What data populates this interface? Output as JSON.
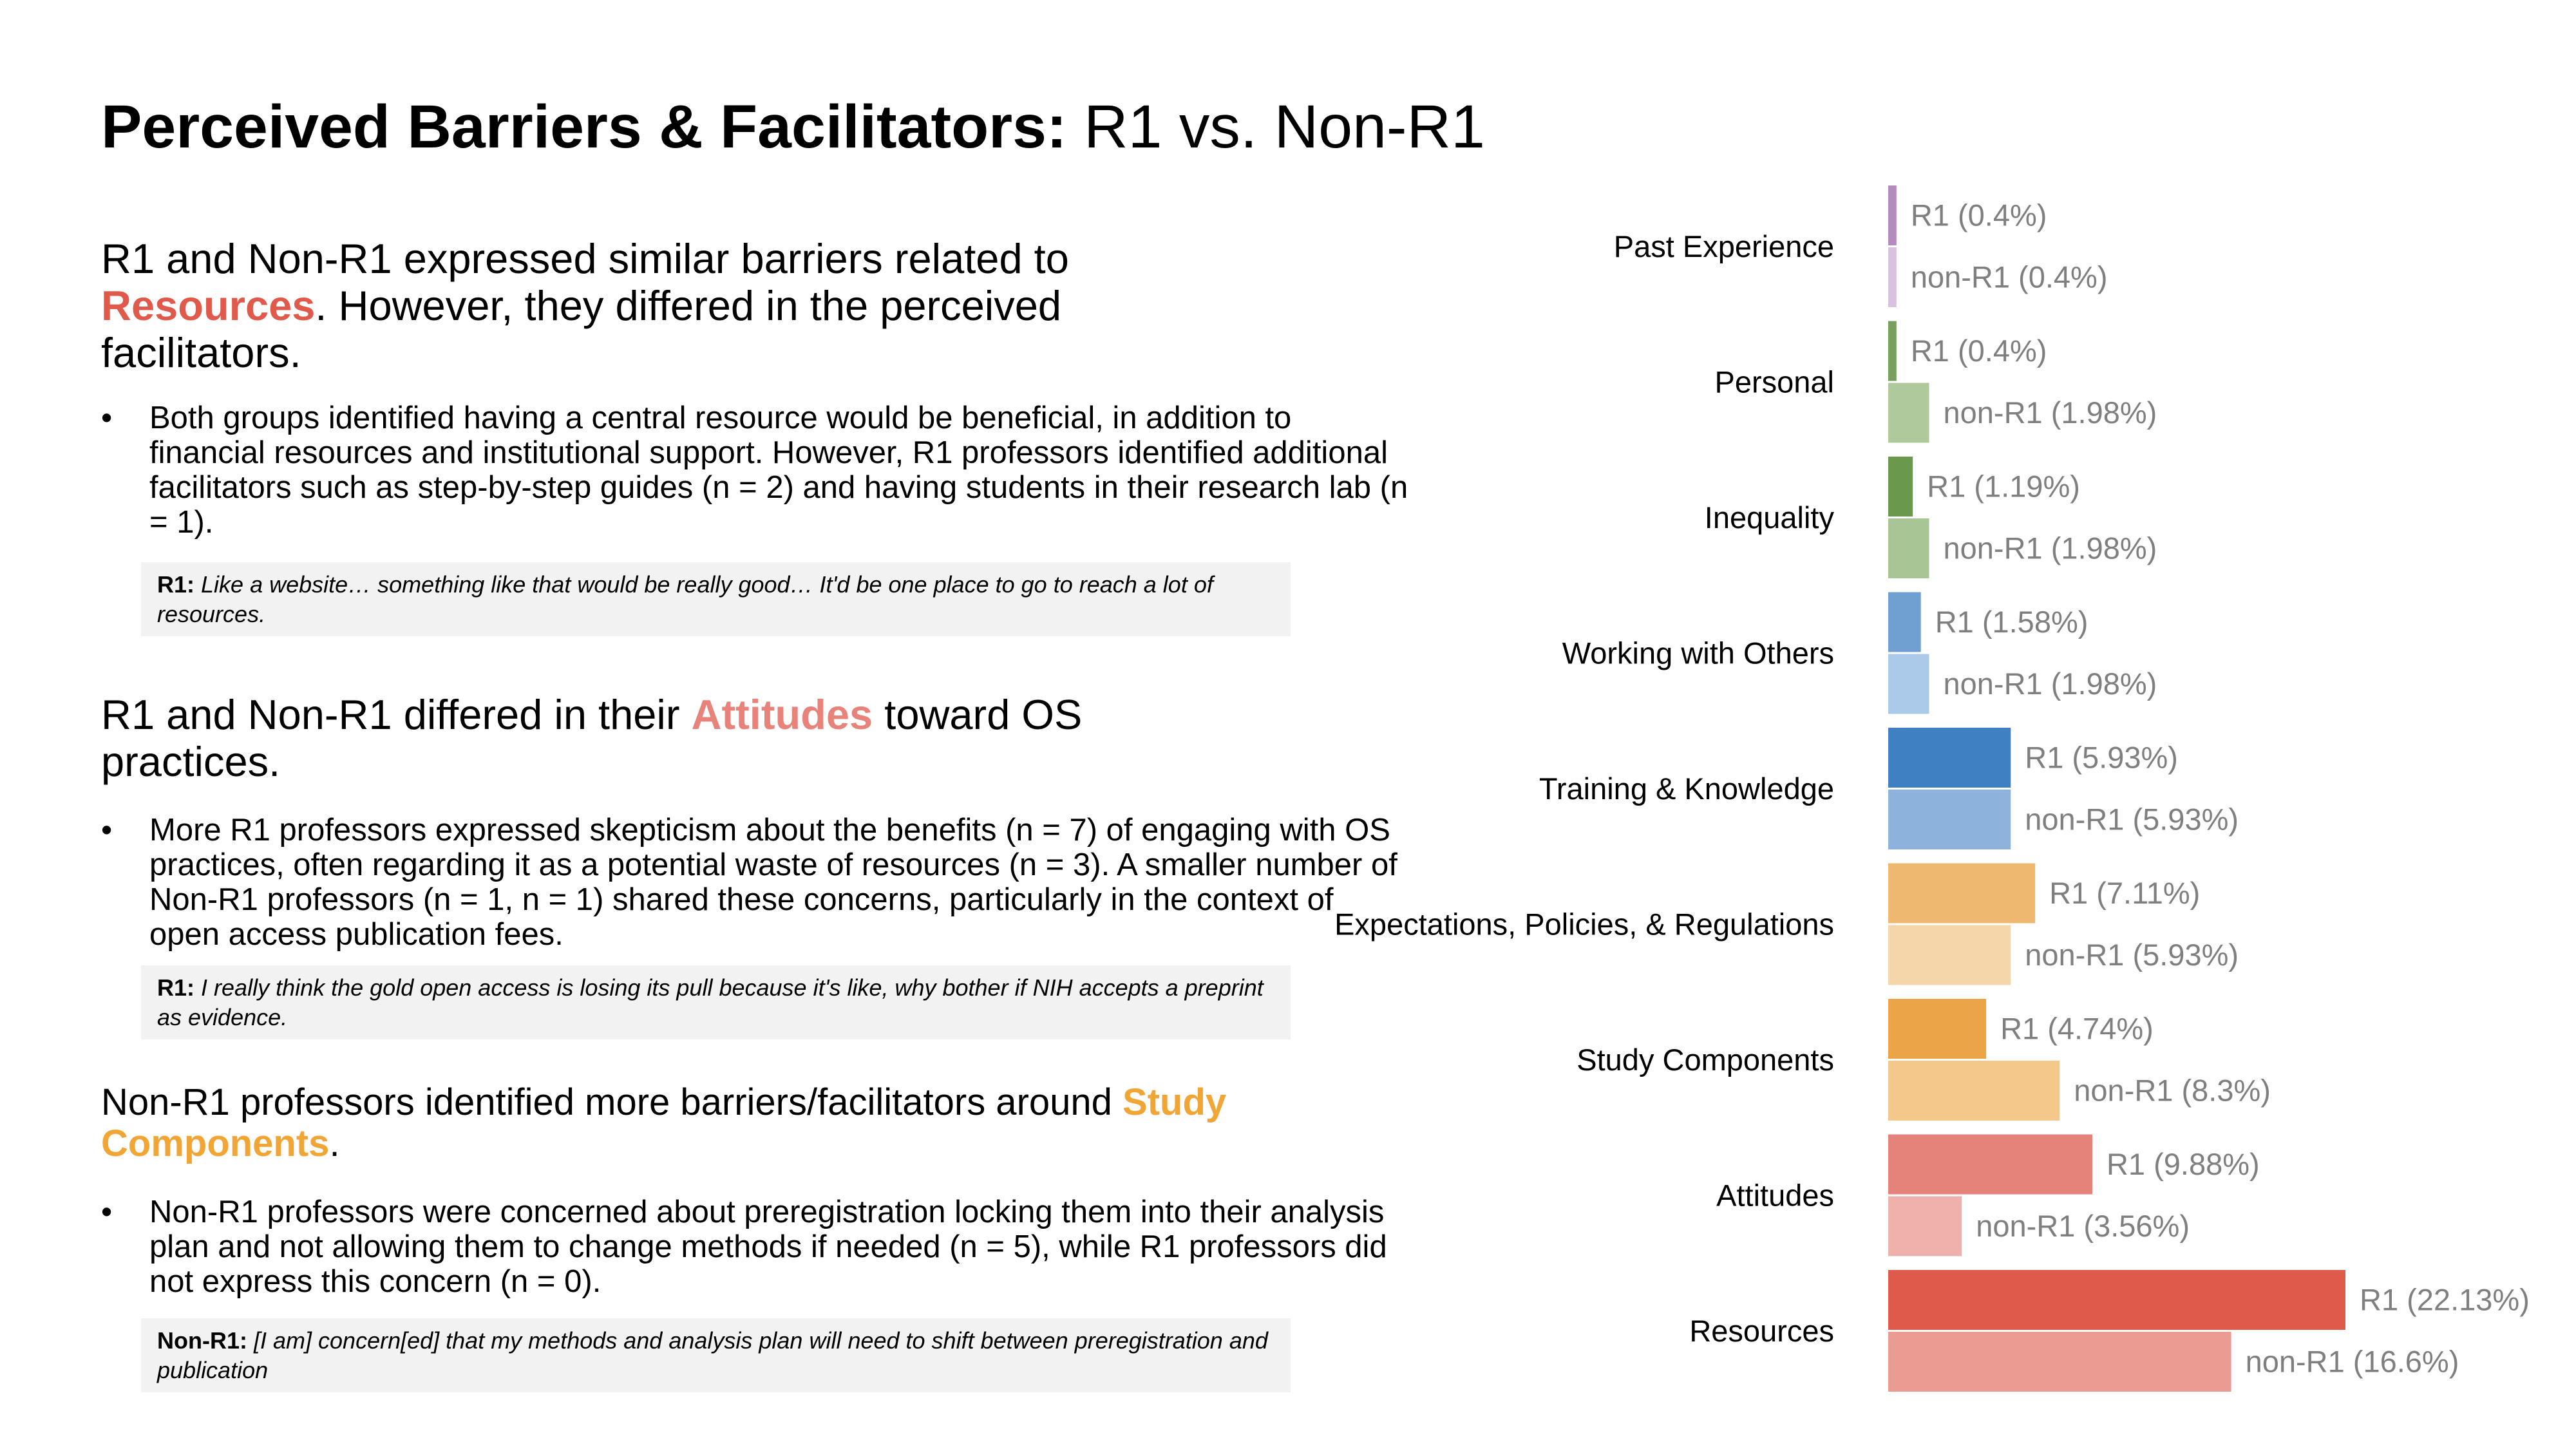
{
  "title": {
    "strong": "Perceived Barriers & Facilitators:",
    "rest": "R1 vs. Non-R1"
  },
  "sections": [
    {
      "heading_pre": "R1 and Non-R1 expressed similar barriers related to ",
      "heading_highlight": "Resources",
      "heading_highlight_color": "#e05a4b",
      "heading_post": ". However, they differed in the perceived facilitators.",
      "bullet_marker": "•",
      "bullet": "Both groups identified having a central resource would be beneficial, in addition to financial resources and institutional support. However, R1 professors identified additional facilitators such as step-by-step guides (n = 2) and having students in their research lab (n = 1).",
      "quote_speaker": "R1:",
      "quote_text": "Like a website… something like that would be really good… It'd be one place to go to reach a lot of resources."
    },
    {
      "heading_pre": "R1 and Non-R1 differed in their ",
      "heading_highlight": "Attitudes",
      "heading_highlight_color": "#e7837a",
      "heading_post": " toward OS practices.",
      "bullet_marker": "•",
      "bullet": "More R1 professors expressed skepticism about the benefits (n = 7) of engaging with OS practices, often regarding it as a potential waste of resources (n = 3). A smaller number of Non-R1 professors (n = 1, n = 1) shared these concerns, particularly in the context of open access publication fees.",
      "quote_speaker": "R1:",
      "quote_text": "I really think the gold open access is losing its pull because it's like, why bother if NIH accepts a preprint as evidence."
    },
    {
      "heading_pre": "Non-R1 professors identified more barriers/facilitators around ",
      "heading_highlight": "Study Components",
      "heading_highlight_color": "#f1a535",
      "heading_post": ".",
      "bullet_marker": "•",
      "bullet": "Non-R1 professors were concerned about preregistration locking them into their analysis plan and not allowing them to change methods if needed (n = 5), while R1 professors did not express this concern (n = 0).",
      "quote_speaker": "Non-R1:",
      "quote_text": "[I am] concern[ed] that my methods and analysis plan will need to shift between preregistration and publication"
    }
  ],
  "chart_data": {
    "type": "bar",
    "orientation": "horizontal",
    "categories": [
      "Past Experience",
      "Personal",
      "Inequality",
      "Working with Others",
      "Training & Knowledge",
      "Expectations, Policies, & Regulations",
      "Study Components",
      "Attitudes",
      "Resources"
    ],
    "series": [
      {
        "name": "R1",
        "values": [
          0.4,
          0.4,
          1.19,
          1.58,
          5.93,
          7.11,
          4.74,
          9.88,
          22.13
        ],
        "labels": [
          "R1 (0.4%)",
          "R1 (0.4%)",
          "R1 (1.19%)",
          "R1 (1.58%)",
          "R1 (5.93%)",
          "R1 (7.11%)",
          "R1 (4.74%)",
          "R1 (9.88%)",
          "R1 (22.13%)"
        ],
        "colors": [
          "#b38bbf",
          "#77a05d",
          "#6a994e",
          "#70a0d2",
          "#3f80c3",
          "#efb870",
          "#eba547",
          "#e5837a",
          "#de5b4b"
        ]
      },
      {
        "name": "non-R1",
        "values": [
          0.4,
          1.98,
          1.98,
          1.98,
          5.93,
          5.93,
          8.3,
          3.56,
          16.6
        ],
        "labels": [
          "non-R1 (0.4%)",
          "non-R1 (1.98%)",
          "non-R1 (1.98%)",
          "non-R1 (1.98%)",
          "non-R1 (5.93%)",
          "non-R1 (5.93%)",
          "non-R1 (8.3%)",
          "non-R1 (3.56%)",
          "non-R1 (16.6%)"
        ],
        "colors": [
          "#d8c2dd",
          "#afc99d",
          "#a8c596",
          "#abc9e8",
          "#8db3dc",
          "#f5d5aa",
          "#f3c88a",
          "#efb1ab",
          "#ea9b92"
        ]
      }
    ],
    "xlim": [
      0,
      22.13
    ],
    "axes_visible": false,
    "grid": false,
    "legend": "none"
  }
}
